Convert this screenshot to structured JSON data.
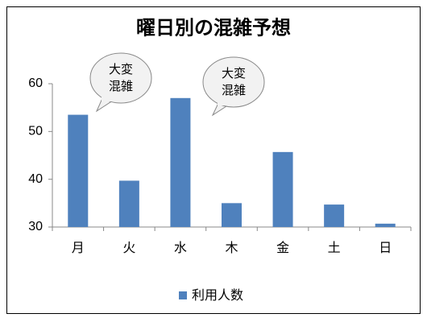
{
  "chart_data": {
    "type": "bar",
    "title": "曜日別の混雑予想",
    "categories": [
      "月",
      "火",
      "水",
      "木",
      "金",
      "土",
      "日"
    ],
    "series": [
      {
        "name": "利用人数",
        "color": "#4f81bd",
        "values": [
          53.5,
          39.7,
          57,
          35,
          45.7,
          34.7,
          30.7
        ]
      }
    ],
    "ylim": [
      30,
      60
    ],
    "yticks": [
      30,
      40,
      50,
      60
    ],
    "grid": false,
    "legend": "bottom",
    "annotations": [
      [
        "大変",
        "混雑"
      ],
      [
        "大変",
        "混雑"
      ]
    ]
  }
}
